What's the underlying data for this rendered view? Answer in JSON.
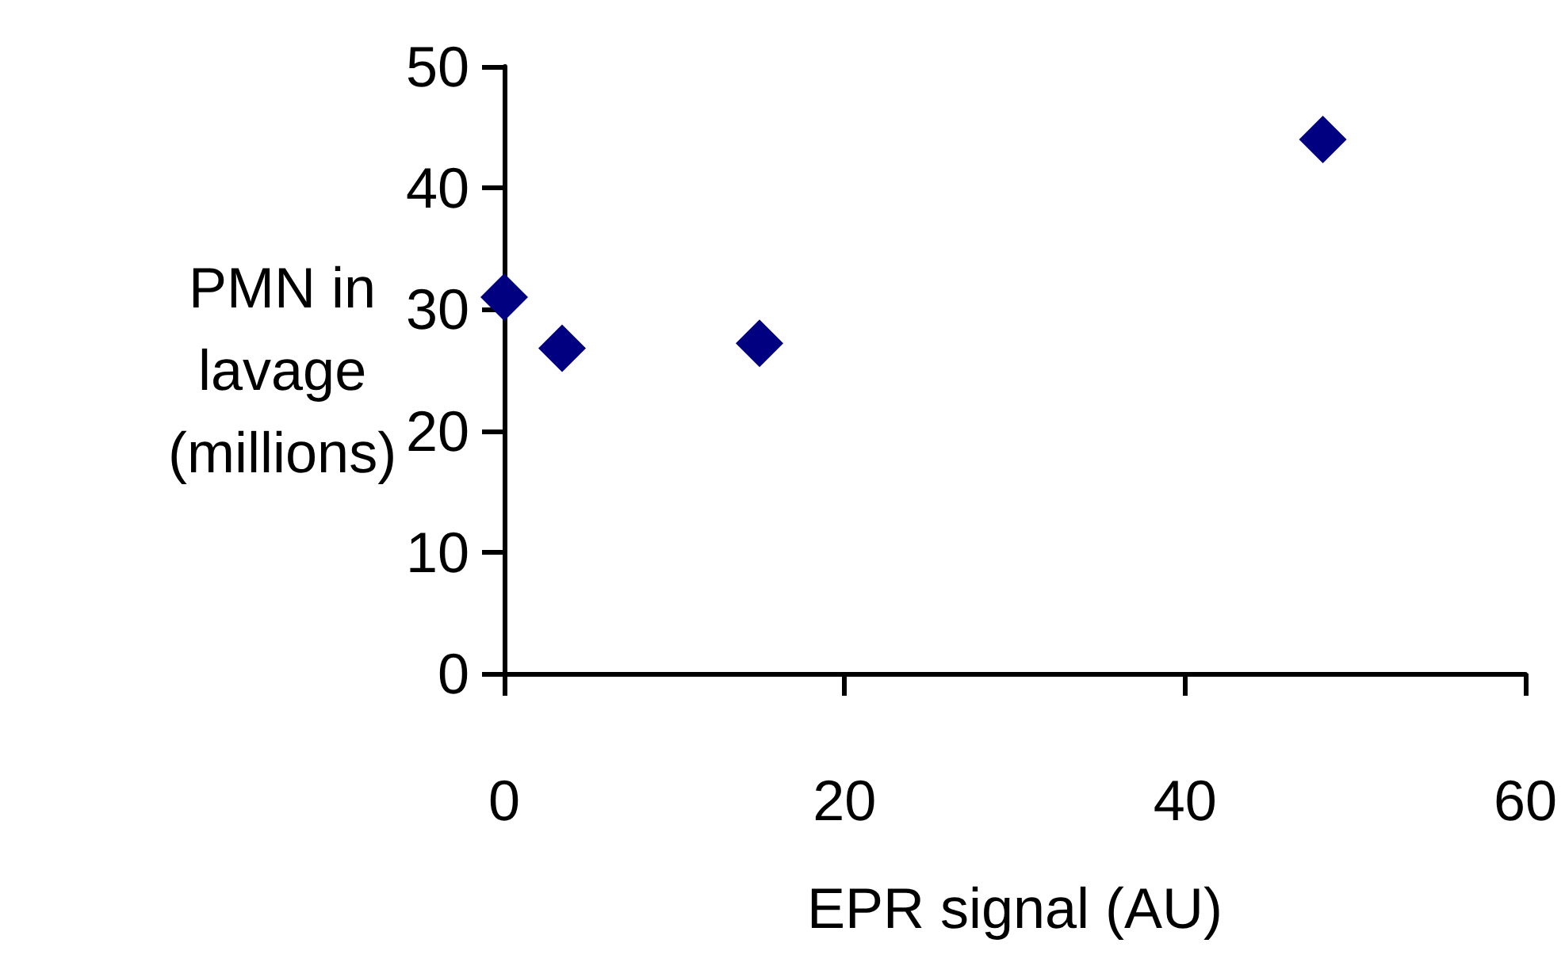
{
  "chart_data": {
    "type": "scatter",
    "xlabel": "EPR signal (AU)",
    "ylabel": "PMN in lavage (millions)",
    "x": [
      0,
      3.4,
      15,
      48.1
    ],
    "series": [
      {
        "color": "#000080",
        "values": [
          31,
          26.8,
          27.2,
          44
        ]
      }
    ],
    "xlim": [
      0,
      60
    ],
    "xticks": [
      0,
      20,
      40,
      60
    ],
    "ylim": [
      0,
      50
    ],
    "yticks": [
      0,
      10,
      20,
      30,
      40,
      50
    ],
    "grid": false,
    "marker": "diamond"
  }
}
